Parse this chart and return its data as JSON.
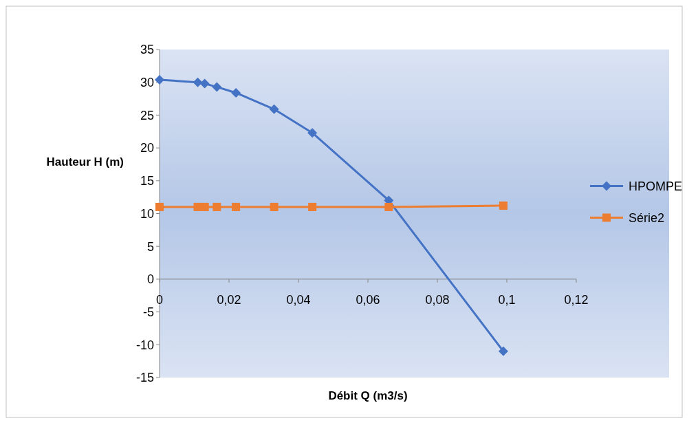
{
  "chart_data": {
    "type": "line",
    "xlabel": "Débit Q (m3/s)",
    "ylabel": "Hauteur H (m)",
    "x": [
      0,
      0.011,
      0.013,
      0.0165,
      0.022,
      0.033,
      0.044,
      0.066,
      0.099
    ],
    "series": [
      {
        "name": "HPOMPE",
        "color": "#4472c4",
        "marker": "diamond",
        "values": [
          30.4,
          30.0,
          29.8,
          29.3,
          28.4,
          25.9,
          22.3,
          12.0,
          -11.0
        ]
      },
      {
        "name": "Série2",
        "color": "#ed7d31",
        "marker": "square",
        "values": [
          11.0,
          11.0,
          11.0,
          11.0,
          11.0,
          11.0,
          11.0,
          11.0,
          11.2
        ]
      }
    ],
    "xlim": [
      0,
      0.12
    ],
    "xticks": [
      0,
      {
        "value": 0.02,
        "label": "0,02"
      },
      {
        "value": 0.04,
        "label": "0,04"
      },
      {
        "value": 0.06,
        "label": "0,06"
      },
      {
        "value": 0.08,
        "label": "0,08"
      },
      {
        "value": 0.1,
        "label": "0,1"
      },
      {
        "value": 0.12,
        "label": "0,12"
      }
    ],
    "ylim": [
      -15,
      35
    ],
    "yticks": [
      -15,
      -10,
      -5,
      0,
      5,
      10,
      15,
      20,
      25,
      30,
      35
    ],
    "grid": false,
    "legend": "right",
    "line_style": "solid"
  }
}
